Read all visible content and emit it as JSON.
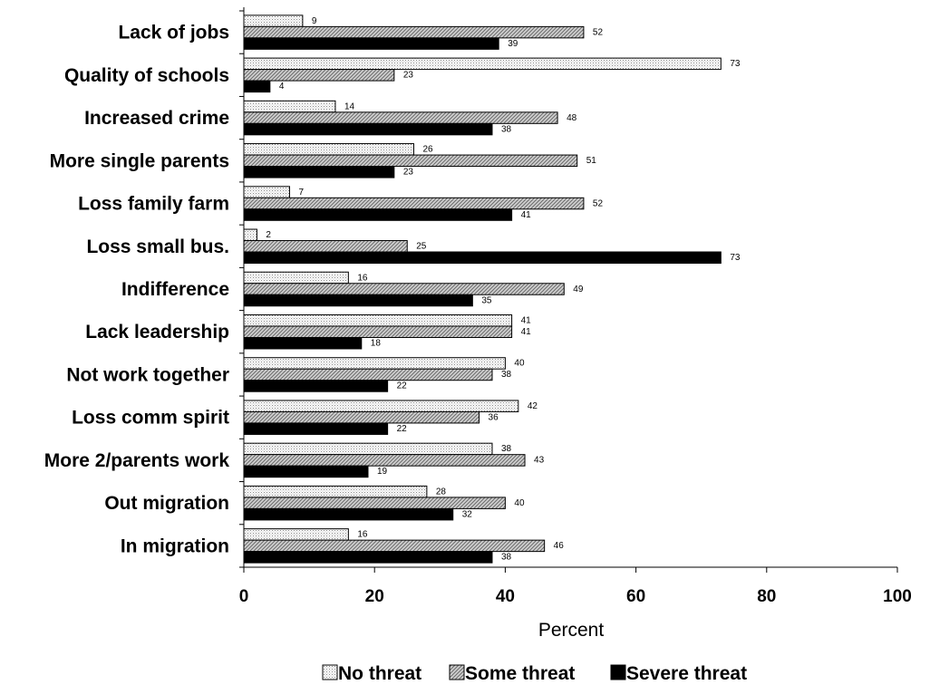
{
  "chart_data": {
    "type": "bar",
    "orientation": "horizontal",
    "title": "",
    "xlabel": "Percent",
    "ylabel": "",
    "xlim": [
      0,
      100
    ],
    "xticks": [
      0,
      20,
      40,
      60,
      80,
      100
    ],
    "grid": false,
    "legend_position": "bottom",
    "categories": [
      "Lack of jobs",
      "Quality of schools",
      "Increased crime",
      "More single parents",
      "Loss family farm",
      "Loss small bus.",
      "Indifference",
      "Lack leadership",
      "Not work together",
      "Loss comm spirit",
      "More 2/parents work",
      "Out migration",
      "In migration"
    ],
    "series": [
      {
        "name": "No threat",
        "style": "dotted",
        "color": "#ffffff",
        "values": [
          9,
          73,
          14,
          26,
          7,
          2,
          16,
          41,
          40,
          42,
          38,
          28,
          16
        ]
      },
      {
        "name": "Some threat",
        "style": "hatched",
        "color": "#b3b3b3",
        "values": [
          52,
          23,
          48,
          51,
          52,
          25,
          49,
          41,
          38,
          36,
          43,
          40,
          46
        ]
      },
      {
        "name": "Severe threat",
        "style": "solid",
        "color": "#000000",
        "values": [
          39,
          4,
          38,
          23,
          41,
          73,
          35,
          18,
          22,
          22,
          19,
          32,
          38
        ]
      }
    ]
  }
}
